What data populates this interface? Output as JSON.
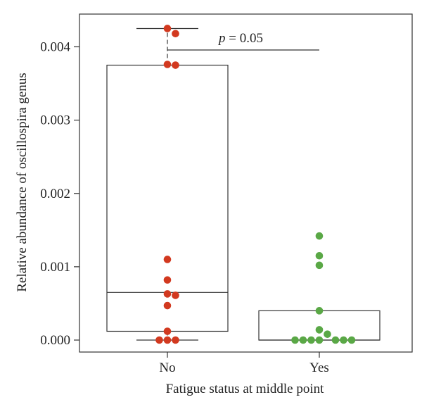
{
  "chart_data": {
    "type": "box",
    "xlabel": "Fatigue status at middle point",
    "ylabel": "Relative abundance of oscillospira genus",
    "categories": [
      "No",
      "Yes"
    ],
    "ylim": [
      -0.0001,
      0.0044
    ],
    "yticks": [
      "0.000",
      "0.001",
      "0.002",
      "0.003",
      "0.004"
    ],
    "boxes": [
      {
        "category": "No",
        "q1": 0.00012,
        "median": 0.00065,
        "q3": 0.00375,
        "whisker_low": 0.0,
        "whisker_high": 0.00425,
        "color": "#d2391f"
      },
      {
        "category": "Yes",
        "q1": 0.0,
        "median": 0.0,
        "q3": 0.0004,
        "whisker_low": 0.0,
        "whisker_high": 0.0004,
        "color": "#5aa846"
      }
    ],
    "points": [
      {
        "category": "No",
        "values": [
          0.00425,
          0.00418,
          0.00376,
          0.00375,
          0.0011,
          0.00082,
          0.00063,
          0.00061,
          0.00047,
          0.00012,
          0.0,
          0.0,
          0.0
        ]
      },
      {
        "category": "Yes",
        "values": [
          0.00142,
          0.00115,
          0.00102,
          0.0004,
          0.00014,
          8e-05,
          0.0,
          0.0,
          0.0,
          0.0,
          0.0,
          0.0,
          0.0
        ]
      }
    ],
    "annotation": {
      "italic": "p",
      "text": " = 0.05"
    },
    "grid": false,
    "legend": "none"
  }
}
